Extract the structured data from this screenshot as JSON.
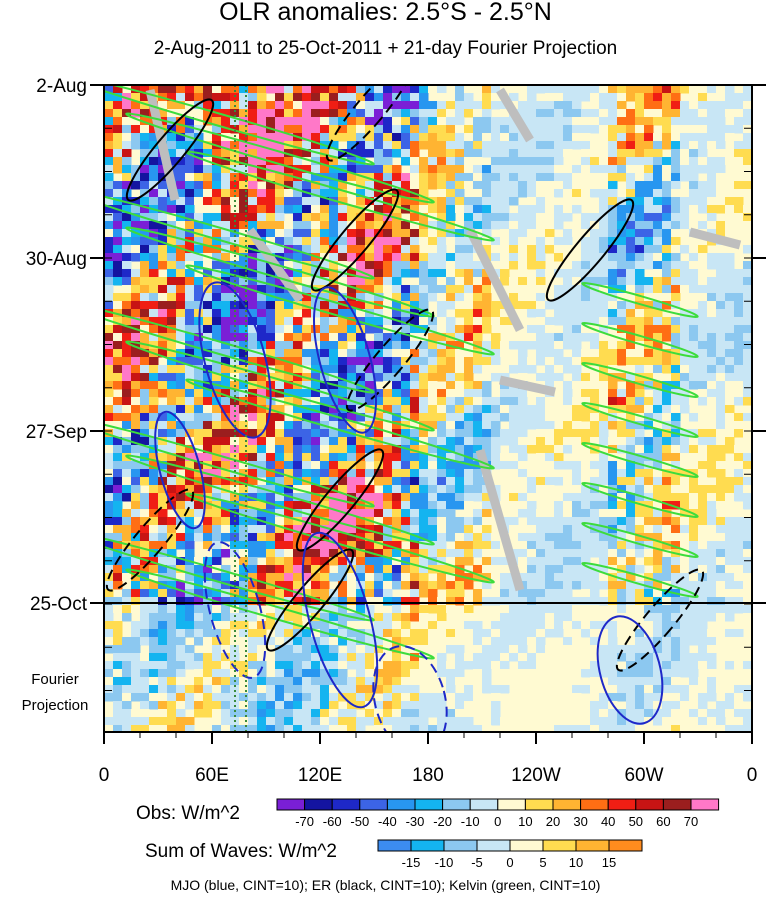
{
  "title": "OLR anomalies: 2.5°S - 2.5°N",
  "subtitle": "2-Aug-2011 to 25-Oct-2011 + 21-day Fourier Projection",
  "chart_data": {
    "type": "heatmap",
    "x_axis": {
      "ticks": [
        "0",
        "60E",
        "120E",
        "180",
        "120W",
        "60W",
        "0"
      ],
      "tick_values_deg_east": [
        0,
        60,
        120,
        180,
        240,
        300,
        360
      ],
      "range": [
        0,
        360
      ]
    },
    "y_axis": {
      "ticks": [
        "2-Aug",
        "30-Aug",
        "27-Sep",
        "25-Oct"
      ],
      "range": [
        "2-Aug-2011",
        "15-Nov-2011"
      ],
      "direction": "time increasing downward",
      "forecast_label": "Fourier\nProjection",
      "observation_end": "25-Oct-2011"
    },
    "obs_colorbar": {
      "label": "Obs: W/m^2",
      "levels": [
        -70,
        -60,
        -50,
        -40,
        -30,
        -20,
        -10,
        0,
        10,
        20,
        30,
        40,
        50,
        60,
        70
      ],
      "colors": [
        "#7a1fd6",
        "#1414a0",
        "#1e28c8",
        "#3c64e6",
        "#2896f0",
        "#14b4f0",
        "#8cc8f0",
        "#c8e6f5",
        "#fffad2",
        "#ffdc50",
        "#ffb432",
        "#ff6e14",
        "#f01e14",
        "#c81414",
        "#9b1e1e",
        "#ff78c8"
      ]
    },
    "waves_colorbar": {
      "label": "Sum of Waves: W/m^2",
      "levels": [
        -15,
        -10,
        -5,
        0,
        5,
        10,
        15
      ],
      "colors": [
        "#3c8cf0",
        "#14b4f0",
        "#8cc8f0",
        "#c8e6f5",
        "#fffad2",
        "#ffdc50",
        "#ffb432",
        "#ff8c1e"
      ]
    },
    "contours": [
      {
        "name": "MJO",
        "color": "#1e28c8",
        "cint": 10
      },
      {
        "name": "ER",
        "color": "#000000",
        "cint": 10
      },
      {
        "name": "Kelvin",
        "color": "#3cdc3c",
        "cint": 10
      }
    ],
    "missing_color": "#bebebe"
  },
  "legend_text": "MJO (blue, CINT=10); ER (black, CINT=10); Kelvin (green, CINT=10)"
}
